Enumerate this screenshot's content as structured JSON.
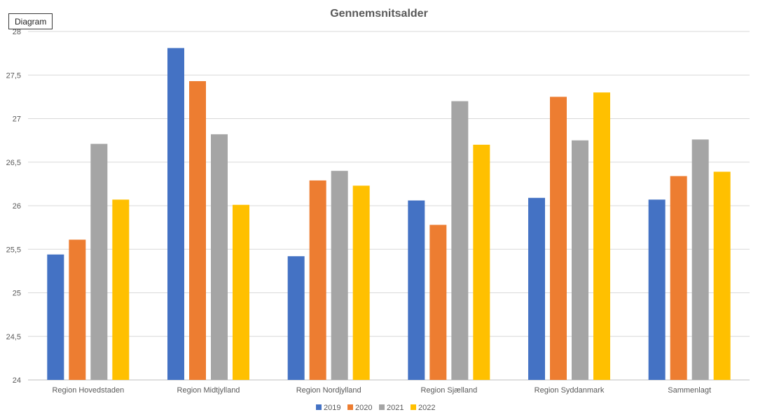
{
  "tag_label": "Diagram",
  "chart_data": {
    "type": "bar",
    "title": "Gennemsnitsalder",
    "xlabel": "",
    "ylabel": "",
    "categories": [
      "Region Hovedstaden",
      "Region Midtjylland",
      "Region Nordjylland",
      "Region Sjælland",
      "Region Syddanmark",
      "Sammenlagt"
    ],
    "series": [
      {
        "name": "2019",
        "color": "#4472C4",
        "values": [
          25.44,
          27.81,
          25.42,
          26.06,
          26.09,
          26.07
        ]
      },
      {
        "name": "2020",
        "color": "#ED7D31",
        "values": [
          25.61,
          27.43,
          26.29,
          25.78,
          27.25,
          26.34
        ]
      },
      {
        "name": "2021",
        "color": "#A5A5A5",
        "values": [
          26.71,
          26.82,
          26.4,
          27.2,
          26.75,
          26.76
        ]
      },
      {
        "name": "2022",
        "color": "#FFC000",
        "values": [
          26.07,
          26.01,
          26.23,
          26.7,
          27.3,
          26.39
        ]
      }
    ],
    "ylim": [
      24,
      28
    ],
    "yticks": [
      "24",
      "24,5",
      "25",
      "25,5",
      "26",
      "26,5",
      "27",
      "27,5",
      "28"
    ],
    "grid": true,
    "legend": "bottom"
  }
}
